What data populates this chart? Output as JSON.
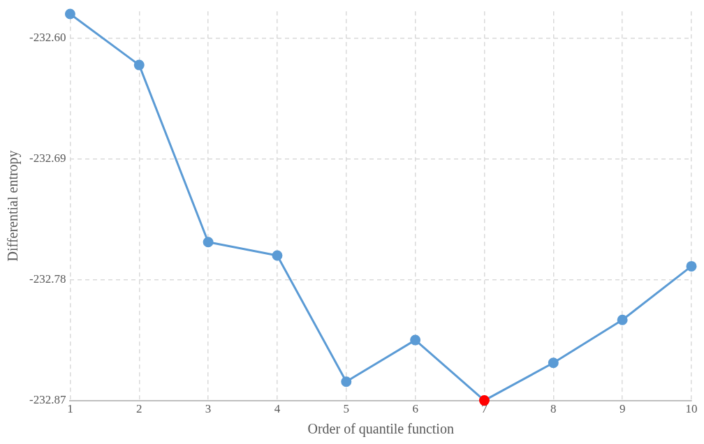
{
  "chart_data": {
    "type": "line",
    "xlabel": "Order of quantile function",
    "ylabel": "Differential entropy",
    "x": [
      1,
      2,
      3,
      4,
      5,
      6,
      7,
      8,
      9,
      10
    ],
    "series": [
      {
        "color": "#5b9bd5",
        "colors": [
          "#5b9bd5",
          "#5b9bd5",
          "#5b9bd5",
          "#5b9bd5",
          "#5b9bd5",
          "#5b9bd5",
          "#ff0000",
          "#5b9bd5",
          "#5b9bd5",
          "#5b9bd5"
        ],
        "values": [
          -232.582,
          -232.62,
          -232.752,
          -232.762,
          -232.856,
          -232.825,
          -232.87,
          -232.842,
          -232.81,
          -232.77
        ]
      }
    ],
    "xlim": [
      1,
      10
    ],
    "xticks": [
      1,
      2,
      3,
      4,
      5,
      6,
      7,
      8,
      9,
      10
    ],
    "ylim": [
      -232.87,
      -232.58
    ],
    "yticks": [
      {
        "value": -232.6,
        "label": "-232.60"
      },
      {
        "value": -232.69,
        "label": "-232.69"
      },
      {
        "value": -232.78,
        "label": "-232.78"
      },
      {
        "value": -232.87,
        "label": "-232.87"
      }
    ],
    "grid": true,
    "legend": false,
    "marker": "circle",
    "line_style": "solid"
  }
}
